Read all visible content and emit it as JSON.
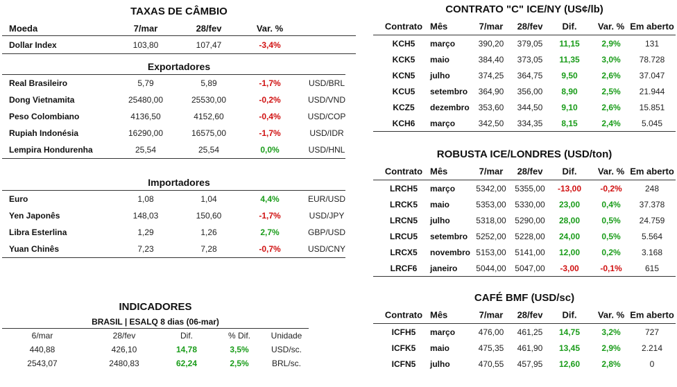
{
  "cambio": {
    "title": "TAXAS DE CÂMBIO",
    "headers": [
      "Moeda",
      "7/mar",
      "28/fev",
      "Var. %"
    ],
    "dollar_index": {
      "name": "Dollar Index",
      "v1": "103,80",
      "v2": "107,47",
      "var": "-3,4%",
      "color": "neg"
    },
    "exportadores_title": "Exportadores",
    "exportadores": [
      {
        "name": "Real Brasileiro",
        "v1": "5,79",
        "v2": "5,89",
        "var": "-1,7%",
        "pair": "USD/BRL",
        "color": "neg"
      },
      {
        "name": "Dong Vietnamita",
        "v1": "25480,00",
        "v2": "25530,00",
        "var": "-0,2%",
        "pair": "USD/VND",
        "color": "neg"
      },
      {
        "name": "Peso Colombiano",
        "v1": "4136,50",
        "v2": "4152,60",
        "var": "-0,4%",
        "pair": "USD/COP",
        "color": "neg"
      },
      {
        "name": "Rupiah Indonésia",
        "v1": "16290,00",
        "v2": "16575,00",
        "var": "-1,7%",
        "pair": "USD/IDR",
        "color": "neg"
      },
      {
        "name": "Lempira Hondurenha",
        "v1": "25,54",
        "v2": "25,54",
        "var": "0,0%",
        "pair": "USD/HNL",
        "color": "pos"
      }
    ],
    "importadores_title": "Importadores",
    "importadores": [
      {
        "name": "Euro",
        "v1": "1,08",
        "v2": "1,04",
        "var": "4,4%",
        "pair": "EUR/USD",
        "color": "pos"
      },
      {
        "name": "Yen Japonês",
        "v1": "148,03",
        "v2": "150,60",
        "var": "-1,7%",
        "pair": "USD/JPY",
        "color": "neg"
      },
      {
        "name": "Libra Esterlina",
        "v1": "1,29",
        "v2": "1,26",
        "var": "2,7%",
        "pair": "GBP/USD",
        "color": "pos"
      },
      {
        "name": "Yuan Chinês",
        "v1": "7,23",
        "v2": "7,28",
        "var": "-0,7%",
        "pair": "USD/CNY",
        "color": "neg"
      }
    ]
  },
  "indicadores": {
    "title": "INDICADORES",
    "subtitle": "BRASIL | ESALQ 8 dias (06-mar)",
    "headers": [
      "6/mar",
      "28/fev",
      "Dif.",
      "% Dif.",
      "Unidade"
    ],
    "rows": [
      {
        "v1": "440,88",
        "v2": "426,10",
        "dif": "14,78",
        "pct": "3,5%",
        "unit": "USD/sc.",
        "color": "pos"
      },
      {
        "v1": "2543,07",
        "v2": "2480,83",
        "dif": "62,24",
        "pct": "2,5%",
        "unit": "BRL/sc.",
        "color": "pos"
      }
    ]
  },
  "ny": {
    "title": "CONTRATO \"C\" ICE/NY (US¢/lb)",
    "headers": [
      "Contrato",
      "Mês",
      "7/mar",
      "28/fev",
      "Dif.",
      "Var. %",
      "Em aberto"
    ],
    "rows": [
      {
        "c": "KCH5",
        "m": "março",
        "v1": "390,20",
        "v2": "379,05",
        "dif": "11,15",
        "var": "2,9%",
        "oi": "131",
        "color": "pos"
      },
      {
        "c": "KCK5",
        "m": "maio",
        "v1": "384,40",
        "v2": "373,05",
        "dif": "11,35",
        "var": "3,0%",
        "oi": "78.728",
        "color": "pos"
      },
      {
        "c": "KCN5",
        "m": "julho",
        "v1": "374,25",
        "v2": "364,75",
        "dif": "9,50",
        "var": "2,6%",
        "oi": "37.047",
        "color": "pos"
      },
      {
        "c": "KCU5",
        "m": "setembro",
        "v1": "364,90",
        "v2": "356,00",
        "dif": "8,90",
        "var": "2,5%",
        "oi": "21.944",
        "color": "pos"
      },
      {
        "c": "KCZ5",
        "m": "dezembro",
        "v1": "353,60",
        "v2": "344,50",
        "dif": "9,10",
        "var": "2,6%",
        "oi": "15.851",
        "color": "pos"
      },
      {
        "c": "KCH6",
        "m": "março",
        "v1": "342,50",
        "v2": "334,35",
        "dif": "8,15",
        "var": "2,4%",
        "oi": "5.045",
        "color": "pos"
      }
    ]
  },
  "robusta": {
    "title": "ROBUSTA ICE/LONDRES (USD/ton)",
    "headers": [
      "Contrato",
      "Mês",
      "7/mar",
      "28/fev",
      "Dif.",
      "Var. %",
      "Em aberto"
    ],
    "rows": [
      {
        "c": "LRCH5",
        "m": "março",
        "v1": "5342,00",
        "v2": "5355,00",
        "dif": "-13,00",
        "var": "-0,2%",
        "oi": "248",
        "color": "neg"
      },
      {
        "c": "LRCK5",
        "m": "maio",
        "v1": "5353,00",
        "v2": "5330,00",
        "dif": "23,00",
        "var": "0,4%",
        "oi": "37.378",
        "color": "pos"
      },
      {
        "c": "LRCN5",
        "m": "julho",
        "v1": "5318,00",
        "v2": "5290,00",
        "dif": "28,00",
        "var": "0,5%",
        "oi": "24.759",
        "color": "pos"
      },
      {
        "c": "LRCU5",
        "m": "setembro",
        "v1": "5252,00",
        "v2": "5228,00",
        "dif": "24,00",
        "var": "0,5%",
        "oi": "5.564",
        "color": "pos"
      },
      {
        "c": "LRCX5",
        "m": "novembro",
        "v1": "5153,00",
        "v2": "5141,00",
        "dif": "12,00",
        "var": "0,2%",
        "oi": "3.168",
        "color": "pos"
      },
      {
        "c": "LRCF6",
        "m": "janeiro",
        "v1": "5044,00",
        "v2": "5047,00",
        "dif": "-3,00",
        "var": "-0,1%",
        "oi": "615",
        "color": "neg"
      }
    ]
  },
  "bmf": {
    "title": "CAFÉ BMF (USD/sc)",
    "headers": [
      "Contrato",
      "Mês",
      "7/mar",
      "28/fev",
      "Dif.",
      "Var. %",
      "Em aberto"
    ],
    "rows": [
      {
        "c": "ICFH5",
        "m": "março",
        "v1": "476,00",
        "v2": "461,25",
        "dif": "14,75",
        "var": "3,2%",
        "oi": "727",
        "color": "pos"
      },
      {
        "c": "ICFK5",
        "m": "maio",
        "v1": "475,35",
        "v2": "461,90",
        "dif": "13,45",
        "var": "2,9%",
        "oi": "2.214",
        "color": "pos"
      },
      {
        "c": "ICFN5",
        "m": "julho",
        "v1": "470,55",
        "v2": "457,95",
        "dif": "12,60",
        "var": "2,8%",
        "oi": "0",
        "color": "pos"
      }
    ]
  }
}
